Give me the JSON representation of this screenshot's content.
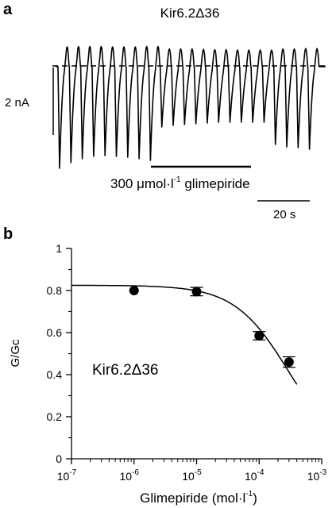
{
  "panel_a": {
    "letter": "a",
    "title": "Kir6.2Δ36",
    "scale_current": "2 nA",
    "drug_label_prefix": "300 μmol·l",
    "drug_label_exp": "-1",
    "drug_label_suffix": " glimepiride",
    "scale_time": "20 s"
  },
  "panel_b": {
    "letter": "b",
    "inset_label": "Kir6.2Δ36",
    "y_axis_title": "G/Gc",
    "x_axis_prefix": "Glimepiride (mol·l",
    "x_axis_exp": "-1",
    "x_axis_suffix": ")",
    "x_ticks": [
      {
        "base": "10",
        "exp": "-7"
      },
      {
        "base": "10",
        "exp": "-6"
      },
      {
        "base": "10",
        "exp": "-5"
      },
      {
        "base": "10",
        "exp": "-4"
      },
      {
        "base": "10",
        "exp": "-3"
      }
    ],
    "y_ticks": [
      "0",
      "0.2",
      "0.4",
      "0.6",
      "0.8",
      "1"
    ]
  },
  "chart_data": {
    "type": "scatter",
    "x_scale": "log",
    "xlim": [
      1e-07,
      0.001
    ],
    "ylim": [
      0,
      1
    ],
    "points": [
      {
        "x": 1e-06,
        "y": 0.8,
        "err": 0.0
      },
      {
        "x": 1e-05,
        "y": 0.795,
        "err": 0.02
      },
      {
        "x": 0.0001,
        "y": 0.585,
        "err": 0.02
      },
      {
        "x": 0.0003,
        "y": 0.46,
        "err": 0.025
      }
    ],
    "fit": {
      "top": 0.825,
      "ic50": 0.0003,
      "hill": 1,
      "x_start": 1e-07,
      "x_end": 0.0004
    }
  },
  "colors": {
    "ink": "#000000",
    "background": "#ffffff"
  }
}
